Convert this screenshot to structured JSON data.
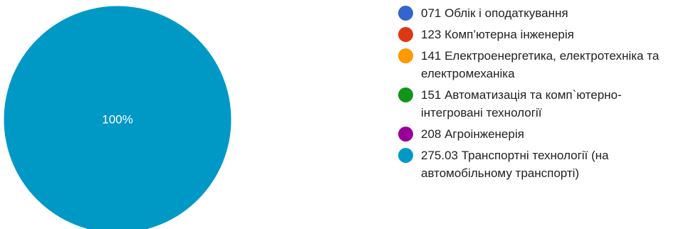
{
  "chart_data": {
    "type": "pie",
    "title": "",
    "categories": [
      "071 Облік і оподаткування",
      "123 Комп’ютерна інженерія",
      "141 Електроенергетика, електротехніка та електромеханіка",
      "151 Автоматизація та комп`ютерно-інтегровані технології",
      "208 Агроінженерія",
      "275.03 Транспортні технології (на автомобільному транспорті)"
    ],
    "values": [
      0,
      0,
      0,
      0,
      0,
      100
    ],
    "slice_labels": [
      "",
      "",
      "",
      "",
      "",
      "100%"
    ],
    "colors": [
      "#3366cc",
      "#dc3912",
      "#ff9900",
      "#109618",
      "#990099",
      "#0099c6"
    ],
    "legend_position": "right"
  }
}
